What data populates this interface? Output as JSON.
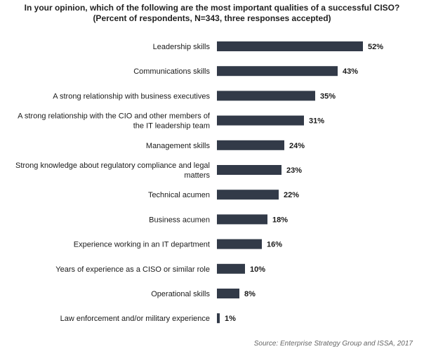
{
  "chart_data": {
    "type": "bar",
    "orientation": "horizontal",
    "title": "In your opinion, which of the following are the most important qualities of a successful CISO? (Percent of respondents, N=343, three responses accepted)",
    "categories": [
      [
        "Leadership skills"
      ],
      [
        "Communications skills"
      ],
      [
        "A strong relationship with business executives"
      ],
      [
        "A strong relationship with the CIO and other members of",
        "the IT leadership team"
      ],
      [
        "Management skills"
      ],
      [
        "Strong knowledge about regulatory compliance and legal",
        "matters"
      ],
      [
        "Technical acumen"
      ],
      [
        "Business acumen"
      ],
      [
        "Experience working in an IT department"
      ],
      [
        "Years of experience as a CISO or similar role"
      ],
      [
        "Operational skills"
      ],
      [
        "Law enforcement and/or military experience"
      ]
    ],
    "values": [
      52,
      43,
      35,
      31,
      24,
      23,
      22,
      18,
      16,
      10,
      8,
      1
    ],
    "value_labels": [
      "52%",
      "43%",
      "35%",
      "31%",
      "24%",
      "23%",
      "22%",
      "18%",
      "16%",
      "10%",
      "8%",
      "1%"
    ],
    "bar_color": "#323a48",
    "xlim": [
      0,
      100
    ],
    "grid": false,
    "legend": "none"
  },
  "source": "Source: Enterprise Strategy Group and ISSA, 2017"
}
